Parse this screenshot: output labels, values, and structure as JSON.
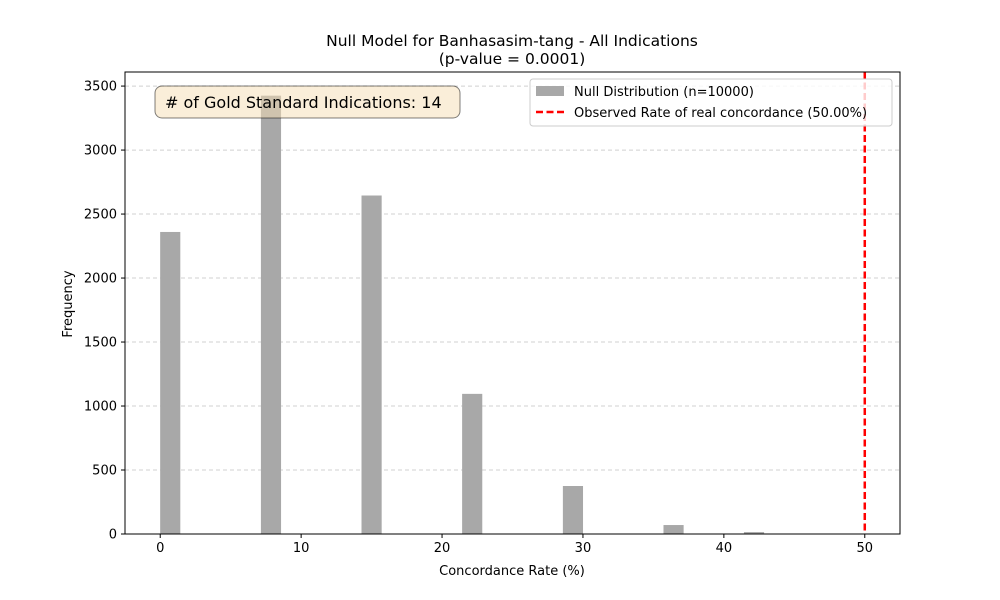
{
  "chart_data": {
    "type": "bar",
    "title": "Null Model for Banhasasim-tang - All Indications",
    "subtitle": "(p-value = 0.0001)",
    "xlabel": "Concordance Rate (%)",
    "ylabel": "Frequency",
    "xlim": [
      -2.5,
      52.5
    ],
    "ylim": [
      0,
      3610
    ],
    "xticks": [
      "0",
      "10",
      "20",
      "30",
      "40",
      "50"
    ],
    "xtick_values": [
      0,
      10,
      20,
      30,
      40,
      50
    ],
    "yticks": [
      "0",
      "500",
      "1000",
      "1500",
      "2000",
      "2500",
      "3000",
      "3500"
    ],
    "ytick_values": [
      0,
      500,
      1000,
      1500,
      2000,
      2500,
      3000,
      3500
    ],
    "grid": "y-dashed",
    "bar_width": 1.43,
    "series": [
      {
        "name": "Null Distribution (n=10000)",
        "color": "#a8a8a8",
        "x": [
          0.71,
          7.86,
          15.0,
          22.14,
          29.29,
          36.43,
          42.14
        ],
        "values": [
          2360,
          3425,
          2645,
          1095,
          375,
          70,
          15
        ]
      }
    ],
    "reference_line": {
      "name": "Observed Rate of real concordance (50.00%)",
      "x": 50.0,
      "color": "#ff0000",
      "style": "dashed"
    },
    "annotation": "# of Gold Standard Indications: 14",
    "legend_position": "top-right"
  }
}
